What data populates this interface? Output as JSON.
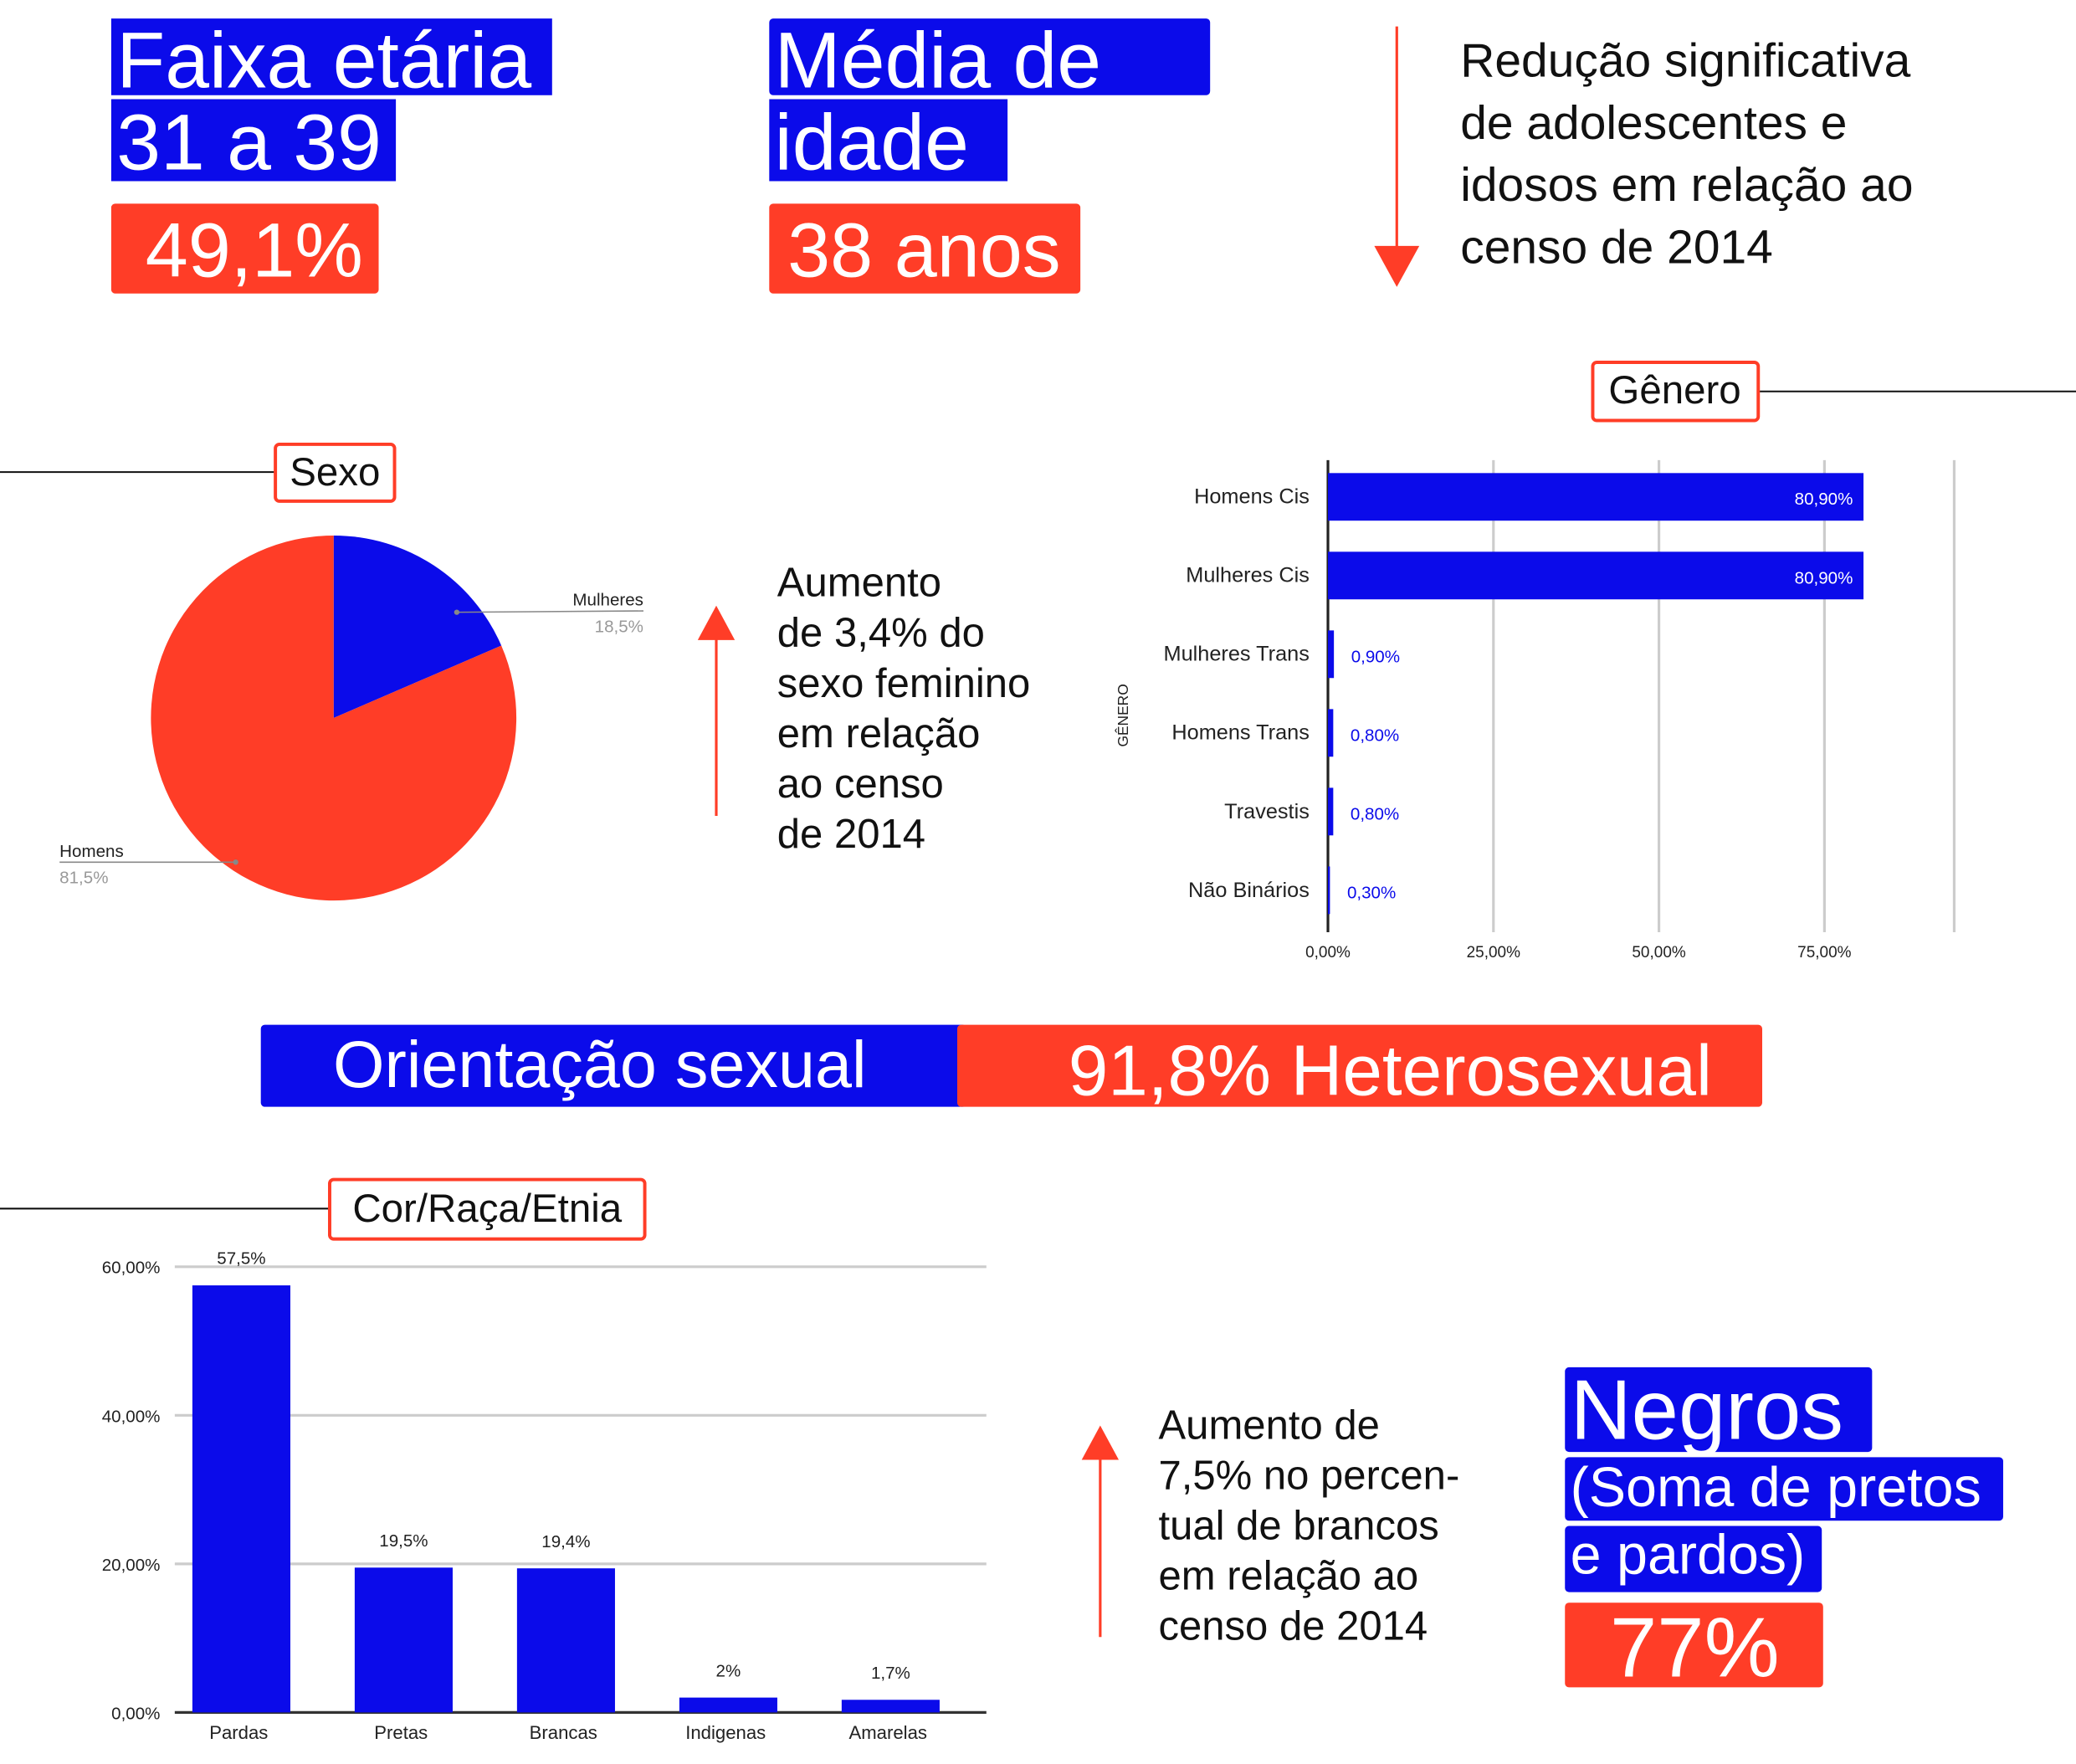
{
  "age": {
    "label": [
      "Faixa etária",
      "31 a 39"
    ],
    "value": "49,1%"
  },
  "mean_age": {
    "label": [
      "Média de",
      "idade"
    ],
    "value": "38 anos"
  },
  "reduction_note": [
    "Redução significativa",
    "de adolescentes e",
    "idosos em relação ao",
    "censo de 2014"
  ],
  "female_note": [
    "Aumento",
    "de 3,4% do",
    "sexo feminino",
    "em relação",
    "ao censo",
    "de 2014"
  ],
  "orientation": {
    "label": "Orientação sexual",
    "value": "91,8% Heterosexual"
  },
  "white_note": [
    "Aumento de",
    "7,5% no percen-",
    "tual de brancos",
    "em relação ao",
    "censo de 2014"
  ],
  "black": {
    "label": [
      "Negros",
      "(Soma de pretos",
      "e pardos)"
    ],
    "value": "77%"
  },
  "chart_data": [
    {
      "type": "pie",
      "title": "Sexo",
      "categories": [
        "Mulheres",
        "Homens"
      ],
      "values": [
        18.5,
        81.5
      ],
      "value_labels": [
        "18,5%",
        "81,5%"
      ],
      "colors": [
        "#0b0bea",
        "#ff3d27"
      ]
    },
    {
      "type": "hbar",
      "title": "Gênero",
      "y_label": "GÊNERO",
      "categories": [
        "Homens Cis",
        "Mulheres Cis",
        "Mulheres Trans",
        "Homens Trans",
        "Travestis",
        "Não Binários"
      ],
      "values": [
        80.9,
        80.9,
        0.9,
        0.8,
        0.8,
        0.3
      ],
      "value_labels": [
        "80,90%",
        "80,90%",
        "0,90%",
        "0,80%",
        "0,80%",
        "0,30%"
      ],
      "color": "#0b0bea",
      "xlim": [
        0,
        94.6
      ],
      "xticks": [
        {
          "value": 0,
          "label": "0,00%"
        },
        {
          "value": 25,
          "label": "25,00%"
        },
        {
          "value": 50,
          "label": "50,00%"
        },
        {
          "value": 75,
          "label": "75,00%"
        }
      ],
      "grid": true
    },
    {
      "type": "bar",
      "title": "Cor/Raça/Etnia",
      "categories": [
        "Pardas",
        "Pretas",
        "Brancas",
        "Indigenas",
        "Amarelas"
      ],
      "values": [
        57.5,
        19.5,
        19.4,
        2,
        1.7
      ],
      "value_labels": [
        "57,5%",
        "19,5%",
        "19,4%",
        "2%",
        "1,7%"
      ],
      "color": "#0b0bea",
      "ylim": [
        0,
        60
      ],
      "yticks": [
        {
          "value": 0,
          "label": "0,00%"
        },
        {
          "value": 20,
          "label": "20,00%"
        },
        {
          "value": 40,
          "label": "40,00%"
        },
        {
          "value": 60,
          "label": "60,00%"
        }
      ],
      "grid": true
    }
  ]
}
